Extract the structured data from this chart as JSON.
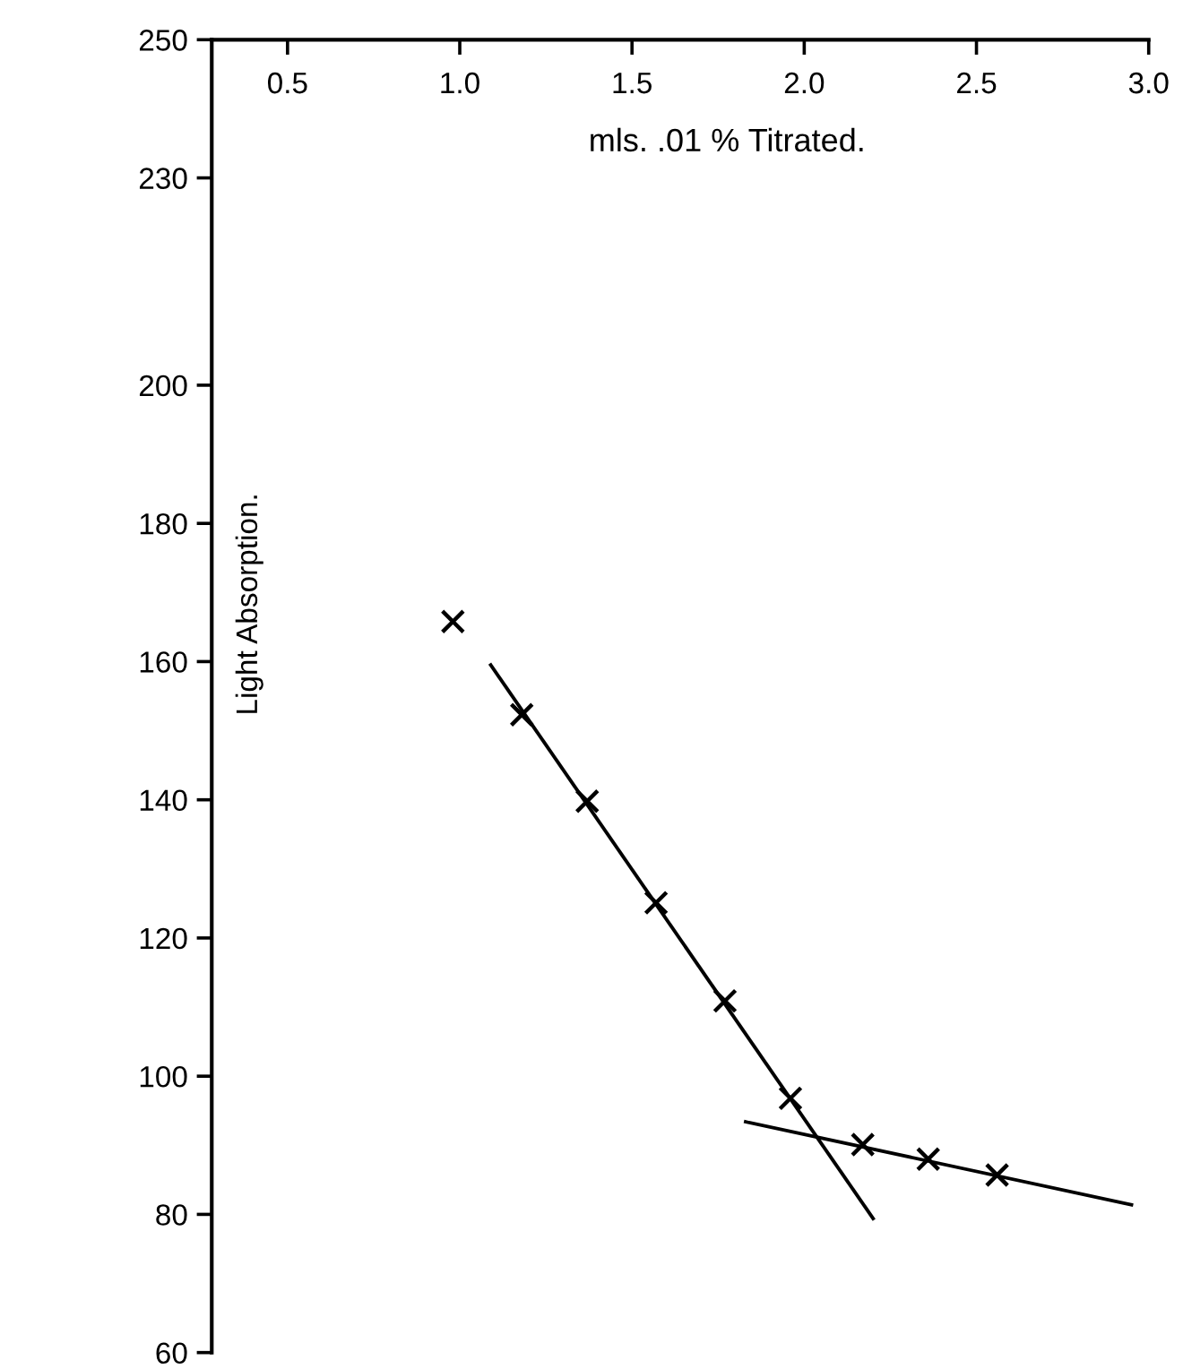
{
  "chart_data": {
    "type": "scatter",
    "xlabel": "mls. .01 % Titrated.",
    "ylabel": "Light Absorption.",
    "xlim": [
      0.28,
      3.0
    ],
    "xticks": [
      0.5,
      {
        "value": 1,
        "label": "1.0"
      },
      1.5,
      {
        "value": 2,
        "label": "2.0"
      },
      2.5,
      {
        "value": 3,
        "label": "3.0"
      }
    ],
    "ylim": [
      60,
      250
    ],
    "yticks": [
      60,
      80,
      100,
      120,
      140,
      160,
      180,
      200,
      230,
      250
    ],
    "grid": false,
    "legend": false,
    "series": [
      {
        "marker": "cross",
        "color": "#000000",
        "x": [
          0.98,
          1.18,
          1.37,
          1.57,
          1.77,
          1.96,
          2.17,
          2.36,
          2.56
        ],
        "values": [
          165.8,
          152.3,
          139.8,
          125.1,
          110.9,
          96.8,
          90.1,
          88.0,
          85.7
        ]
      },
      {
        "type": "line",
        "color": "#000000",
        "x": [
          1.09,
          2.2
        ],
        "values": [
          159.5,
          79.4
        ]
      },
      {
        "type": "line",
        "color": "#000000",
        "x": [
          1.83,
          2.95
        ],
        "values": [
          93.4,
          81.4
        ]
      }
    ]
  }
}
